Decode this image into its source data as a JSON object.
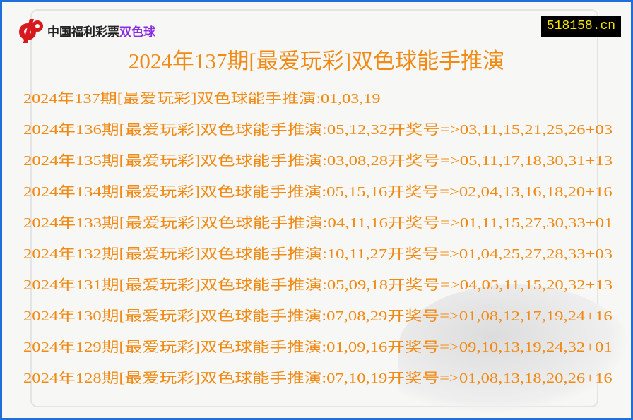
{
  "header": {
    "logo_text": "中国福利彩票",
    "logo_text_highlight": "双色球",
    "site": "518158.cn",
    "title": "2024年137期[最爱玩彩]双色球能手推演"
  },
  "colors": {
    "text": "#f08a14",
    "border": "#1e6fd8",
    "site_bg": "#000000",
    "site_text": "#f5e400",
    "logo_red": "#d7191f"
  },
  "rows": [
    "2024年137期[最爱玩彩]双色球能手推演:01,03,19",
    "2024年136期[最爱玩彩]双色球能手推演:05,12,32开奖号=>03,11,15,21,25,26+03",
    "2024年135期[最爱玩彩]双色球能手推演:03,08,28开奖号=>05,11,17,18,30,31+13",
    "2024年134期[最爱玩彩]双色球能手推演:05,15,16开奖号=>02,04,13,16,18,20+16",
    "2024年133期[最爱玩彩]双色球能手推演:04,11,16开奖号=>01,11,15,27,30,33+01",
    "2024年132期[最爱玩彩]双色球能手推演:10,11,27开奖号=>01,04,25,27,28,33+03",
    "2024年131期[最爱玩彩]双色球能手推演:05,09,18开奖号=>04,05,11,15,20,32+13",
    "2024年130期[最爱玩彩]双色球能手推演:07,08,29开奖号=>01,08,12,17,19,24+16",
    "2024年129期[最爱玩彩]双色球能手推演:01,09,16开奖号=>09,10,13,19,24,32+01",
    "2024年128期[最爱玩彩]双色球能手推演:07,10,19开奖号=>01,08,13,18,20,26+16"
  ]
}
